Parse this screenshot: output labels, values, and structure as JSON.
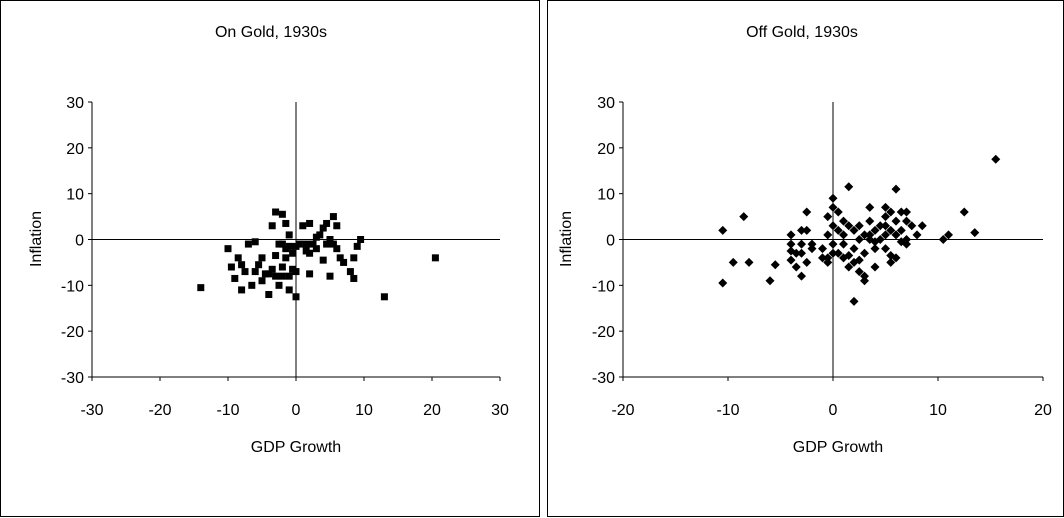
{
  "chart_data": [
    {
      "type": "scatter",
      "title": "On Gold, 1930s",
      "xlabel": "GDP Growth",
      "ylabel": "Inflation",
      "xlim": [
        -30,
        30
      ],
      "ylim": [
        -30,
        30
      ],
      "xticks": [
        "-30",
        "-20",
        "-10",
        "0",
        "10",
        "20",
        "30"
      ],
      "yticks": [
        "30",
        "20",
        "10",
        "0",
        "-10",
        "-20",
        "-30"
      ],
      "marker": "square",
      "grid": false,
      "points": [
        [
          -14,
          -10.5
        ],
        [
          -10,
          -2
        ],
        [
          -9.5,
          -6
        ],
        [
          -9,
          -8.5
        ],
        [
          -8.5,
          -4
        ],
        [
          -8,
          -11
        ],
        [
          -8,
          -5.5
        ],
        [
          -7.5,
          -7
        ],
        [
          -7,
          -1
        ],
        [
          -6.5,
          -10
        ],
        [
          -6,
          -7
        ],
        [
          -6,
          -0.5
        ],
        [
          -5.5,
          -5.5
        ],
        [
          -5,
          -4
        ],
        [
          -5,
          -9
        ],
        [
          -4.5,
          -7.5
        ],
        [
          -4,
          -12
        ],
        [
          -4,
          -7.5
        ],
        [
          -3.5,
          3
        ],
        [
          -3.5,
          -6.5
        ],
        [
          -3,
          6
        ],
        [
          -3,
          -8
        ],
        [
          -3,
          -3.5
        ],
        [
          -2.5,
          -1
        ],
        [
          -2.5,
          -10
        ],
        [
          -2,
          5.5
        ],
        [
          -2,
          -1
        ],
        [
          -2,
          -6
        ],
        [
          -2,
          -8
        ],
        [
          -1.5,
          3.5
        ],
        [
          -1.5,
          -2
        ],
        [
          -1.5,
          -4
        ],
        [
          -1,
          1
        ],
        [
          -1,
          -1.5
        ],
        [
          -1,
          -11
        ],
        [
          -1,
          -8
        ],
        [
          -0.5,
          -3
        ],
        [
          -0.5,
          -6.5
        ],
        [
          0,
          -1.5
        ],
        [
          0,
          -7
        ],
        [
          0,
          -12.5
        ],
        [
          0.5,
          -1
        ],
        [
          1,
          3
        ],
        [
          1.5,
          -1
        ],
        [
          1.5,
          -2.5
        ],
        [
          2,
          3.5
        ],
        [
          2,
          -7.5
        ],
        [
          2,
          -3
        ],
        [
          2.5,
          -1
        ],
        [
          3,
          0.5
        ],
        [
          3,
          -2
        ],
        [
          3.5,
          1
        ],
        [
          4,
          2.5
        ],
        [
          4,
          -4.5
        ],
        [
          4.5,
          3.5
        ],
        [
          4.5,
          -1
        ],
        [
          5,
          0
        ],
        [
          5,
          -8
        ],
        [
          5.5,
          5
        ],
        [
          5.5,
          -1
        ],
        [
          6,
          3
        ],
        [
          6,
          -2
        ],
        [
          6.5,
          -4
        ],
        [
          7,
          -5
        ],
        [
          8,
          -7
        ],
        [
          8.5,
          -4
        ],
        [
          8.5,
          -8.5
        ],
        [
          9,
          -1.5
        ],
        [
          9.5,
          0
        ],
        [
          13,
          -12.5
        ],
        [
          20.5,
          -4
        ]
      ]
    },
    {
      "type": "scatter",
      "title": "Off Gold, 1930s",
      "xlabel": "GDP Growth",
      "ylabel": "Inflation",
      "xlim": [
        -20,
        20
      ],
      "ylim": [
        -30,
        30
      ],
      "xticks": [
        "-20",
        "-10",
        "0",
        "10",
        "20"
      ],
      "yticks": [
        "30",
        "20",
        "10",
        "0",
        "-10",
        "-20",
        "-30"
      ],
      "marker": "diamond",
      "grid": false,
      "points": [
        [
          -10.5,
          2
        ],
        [
          -10.5,
          -9.5
        ],
        [
          -8.5,
          5
        ],
        [
          -8,
          -5
        ],
        [
          -6,
          -9
        ],
        [
          -5.5,
          -5.5
        ],
        [
          -4,
          1
        ],
        [
          -4,
          -1
        ],
        [
          -4,
          -2.5
        ],
        [
          -4,
          -4.5
        ],
        [
          -3.5,
          -3
        ],
        [
          -3.5,
          -6
        ],
        [
          -3,
          2
        ],
        [
          -3,
          -1
        ],
        [
          -3,
          -3
        ],
        [
          -3,
          -8
        ],
        [
          -2.5,
          6
        ],
        [
          -2.5,
          2
        ],
        [
          -2.5,
          -5
        ],
        [
          -2,
          -1
        ],
        [
          -2,
          -2
        ],
        [
          -1,
          -2
        ],
        [
          -1,
          -4
        ],
        [
          -0.5,
          5
        ],
        [
          -0.5,
          1
        ],
        [
          -0.5,
          -4
        ],
        [
          -0.5,
          -5
        ],
        [
          0,
          9
        ],
        [
          0,
          7
        ],
        [
          0,
          3
        ],
        [
          0,
          -1
        ],
        [
          0,
          -3
        ],
        [
          0.5,
          6
        ],
        [
          0.5,
          2
        ],
        [
          0.5,
          -3
        ],
        [
          1,
          4
        ],
        [
          1,
          1
        ],
        [
          1,
          -1
        ],
        [
          1,
          -4
        ],
        [
          1.5,
          11.5
        ],
        [
          1.5,
          3
        ],
        [
          1.5,
          -6
        ],
        [
          2,
          2
        ],
        [
          2,
          -2
        ],
        [
          2,
          -5
        ],
        [
          2,
          -13.5
        ],
        [
          2.5,
          3
        ],
        [
          2.5,
          0
        ],
        [
          2.5,
          -7
        ],
        [
          3,
          1
        ],
        [
          3,
          -3
        ],
        [
          3,
          -8
        ],
        [
          3.5,
          7
        ],
        [
          3.5,
          4
        ],
        [
          3.5,
          1
        ],
        [
          3.5,
          0
        ],
        [
          4,
          2
        ],
        [
          4,
          -2
        ],
        [
          4,
          -6
        ],
        [
          4.5,
          3
        ],
        [
          4.5,
          0
        ],
        [
          5,
          7
        ],
        [
          5,
          5
        ],
        [
          5,
          3
        ],
        [
          5,
          1
        ],
        [
          5,
          -2
        ],
        [
          5.5,
          6
        ],
        [
          5.5,
          2
        ],
        [
          5.5,
          -5
        ],
        [
          6,
          11
        ],
        [
          6,
          4
        ],
        [
          6,
          1
        ],
        [
          6,
          -4
        ],
        [
          6.5,
          6
        ],
        [
          6.5,
          2
        ],
        [
          7,
          6
        ],
        [
          7,
          4
        ],
        [
          7,
          0
        ],
        [
          7,
          -1
        ],
        [
          7.5,
          3
        ],
        [
          8,
          1
        ],
        [
          8.5,
          3
        ],
        [
          10.5,
          0
        ],
        [
          11,
          1
        ],
        [
          12.5,
          6
        ],
        [
          13.5,
          1.5
        ],
        [
          15.5,
          17.5
        ],
        [
          -9.5,
          -5
        ],
        [
          3,
          -9
        ],
        [
          2.5,
          -4.5
        ],
        [
          1.5,
          -3.5
        ],
        [
          5.5,
          -3.5
        ],
        [
          4,
          -0.5
        ],
        [
          6.5,
          -0.5
        ]
      ]
    }
  ]
}
